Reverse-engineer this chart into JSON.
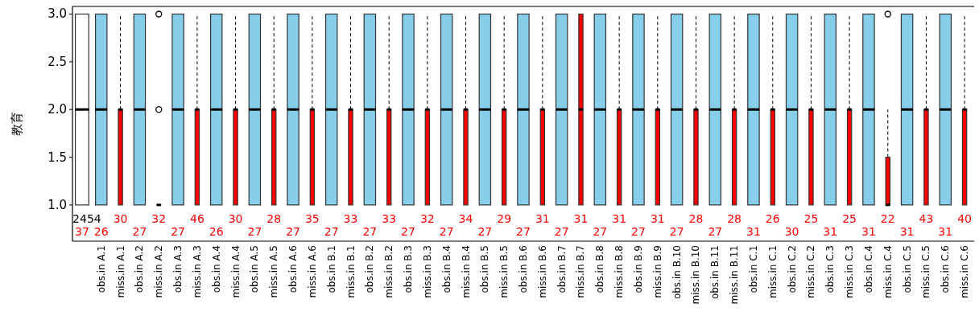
{
  "chart_data": {
    "type": "box",
    "ylabel": "教育",
    "categories": [
      null,
      "obs.in A.1",
      "miss.in A.1",
      "obs.in A.2",
      "miss.in A.2",
      "obs.in A.3",
      "miss.in A.3",
      "obs.in A.4",
      "miss.in A.4",
      "obs.in A.5",
      "miss.in A.5",
      "obs.in A.6",
      "miss.in A.6",
      "obs.in B.1",
      "miss.in B.1",
      "obs.in B.2",
      "miss.in B.2",
      "obs.in B.3",
      "miss.in B.3",
      "obs.in B.4",
      "miss.in B.4",
      "obs.in B.5",
      "miss.in B.5",
      "obs.in B.6",
      "miss.in B.6",
      "obs.in B.7",
      "miss.in B.7",
      "obs.in B.8",
      "miss.in B.8",
      "obs.in B.9",
      "miss.in B.9",
      "obs.in B.10",
      "miss.in B.10",
      "obs.in B.11",
      "miss.in B.11",
      "obs.in C.1",
      "miss.in C.1",
      "obs.in C.2",
      "miss.in C.2",
      "obs.in C.3",
      "miss.in C.3",
      "obs.in C.4",
      "miss.in C.4",
      "obs.in C.5",
      "miss.in C.5",
      "obs.in C.6",
      "miss.in C.6"
    ],
    "ylim": [
      0.62,
      3.08
    ],
    "yticks": [
      {
        "value": 1,
        "label": "1.0"
      },
      {
        "value": 1.5,
        "label": "1.5"
      },
      {
        "value": 2,
        "label": "2.0"
      },
      {
        "value": 2.5,
        "label": "2.5"
      },
      {
        "value": 3,
        "label": "3.0"
      }
    ],
    "series": [
      {
        "color": "#ffffff",
        "boxes": [
          {
            "low": 1,
            "q1": 1,
            "median": 2,
            "q3": 3,
            "high": 3
          },
          null,
          null,
          null,
          null,
          null,
          null,
          null,
          null,
          null,
          null,
          null,
          null,
          null,
          null,
          null,
          null,
          null,
          null,
          null,
          null,
          null,
          null,
          null,
          null,
          null,
          null,
          null,
          null,
          null,
          null,
          null,
          null,
          null,
          null,
          null,
          null,
          null,
          null,
          null,
          null,
          null,
          null,
          null,
          null,
          null,
          null
        ]
      },
      {
        "color": "#87ceeb",
        "boxes": [
          null,
          {
            "low": 1,
            "q1": 1,
            "median": 2,
            "q3": 3,
            "high": 3
          },
          null,
          {
            "low": 1,
            "q1": 1,
            "median": 2,
            "q3": 3,
            "high": 3
          },
          null,
          {
            "low": 1,
            "q1": 1,
            "median": 2,
            "q3": 3,
            "high": 3
          },
          null,
          {
            "low": 1,
            "q1": 1,
            "median": 2,
            "q3": 3,
            "high": 3
          },
          null,
          {
            "low": 1,
            "q1": 1,
            "median": 2,
            "q3": 3,
            "high": 3
          },
          null,
          {
            "low": 1,
            "q1": 1,
            "median": 2,
            "q3": 3,
            "high": 3
          },
          null,
          {
            "low": 1,
            "q1": 1,
            "median": 2,
            "q3": 3,
            "high": 3
          },
          null,
          {
            "low": 1,
            "q1": 1,
            "median": 2,
            "q3": 3,
            "high": 3
          },
          null,
          {
            "low": 1,
            "q1": 1,
            "median": 2,
            "q3": 3,
            "high": 3
          },
          null,
          {
            "low": 1,
            "q1": 1,
            "median": 2,
            "q3": 3,
            "high": 3
          },
          null,
          {
            "low": 1,
            "q1": 1,
            "median": 2,
            "q3": 3,
            "high": 3
          },
          null,
          {
            "low": 1,
            "q1": 1,
            "median": 2,
            "q3": 3,
            "high": 3
          },
          null,
          {
            "low": 1,
            "q1": 1,
            "median": 2,
            "q3": 3,
            "high": 3
          },
          null,
          {
            "low": 1,
            "q1": 1,
            "median": 2,
            "q3": 3,
            "high": 3
          },
          null,
          {
            "low": 1,
            "q1": 1,
            "median": 2,
            "q3": 3,
            "high": 3
          },
          null,
          {
            "low": 1,
            "q1": 1,
            "median": 2,
            "q3": 3,
            "high": 3
          },
          null,
          {
            "low": 1,
            "q1": 1,
            "median": 2,
            "q3": 3,
            "high": 3
          },
          null,
          {
            "low": 1,
            "q1": 1,
            "median": 2,
            "q3": 3,
            "high": 3
          },
          null,
          {
            "low": 1,
            "q1": 1,
            "median": 2,
            "q3": 3,
            "high": 3
          },
          null,
          {
            "low": 1,
            "q1": 1,
            "median": 2,
            "q3": 3,
            "high": 3
          },
          null,
          {
            "low": 1,
            "q1": 1,
            "median": 2,
            "q3": 3,
            "high": 3
          },
          null,
          {
            "low": 1,
            "q1": 1,
            "median": 2,
            "q3": 3,
            "high": 3
          },
          null,
          {
            "low": 1,
            "q1": 1,
            "median": 2,
            "q3": 3,
            "high": 3
          },
          null
        ]
      },
      {
        "color": "#ff0000",
        "boxes": [
          null,
          null,
          {
            "low": 1,
            "q1": 1,
            "median": 2,
            "q3": 2,
            "high": 3
          },
          null,
          {
            "low": 1,
            "q1": 1,
            "median": 1,
            "q3": 1,
            "high": 1,
            "outliers": [
              2,
              3
            ]
          },
          null,
          {
            "low": 1,
            "q1": 1,
            "median": 2,
            "q3": 2,
            "high": 3
          },
          null,
          {
            "low": 1,
            "q1": 1,
            "median": 2,
            "q3": 2,
            "high": 3
          },
          null,
          {
            "low": 1,
            "q1": 1,
            "median": 2,
            "q3": 2,
            "high": 3
          },
          null,
          {
            "low": 1,
            "q1": 1,
            "median": 2,
            "q3": 2,
            "high": 3
          },
          null,
          {
            "low": 1,
            "q1": 1,
            "median": 2,
            "q3": 2,
            "high": 3
          },
          null,
          {
            "low": 1,
            "q1": 1,
            "median": 2,
            "q3": 2,
            "high": 3
          },
          null,
          {
            "low": 1,
            "q1": 1,
            "median": 2,
            "q3": 2,
            "high": 3
          },
          null,
          {
            "low": 1,
            "q1": 1,
            "median": 2,
            "q3": 2,
            "high": 3
          },
          null,
          {
            "low": 1,
            "q1": 1,
            "median": 2,
            "q3": 2,
            "high": 3
          },
          null,
          {
            "low": 1,
            "q1": 1,
            "median": 2,
            "q3": 2,
            "high": 3
          },
          null,
          {
            "low": 1,
            "q1": 1,
            "median": 2,
            "q3": 3,
            "high": 3
          },
          null,
          {
            "low": 1,
            "q1": 1,
            "median": 2,
            "q3": 2,
            "high": 3
          },
          null,
          {
            "low": 1,
            "q1": 1,
            "median": 2,
            "q3": 2,
            "high": 3
          },
          null,
          {
            "low": 1,
            "q1": 1,
            "median": 2,
            "q3": 2,
            "high": 3
          },
          null,
          {
            "low": 1,
            "q1": 1,
            "median": 2,
            "q3": 2,
            "high": 3
          },
          null,
          {
            "low": 1,
            "q1": 1,
            "median": 2,
            "q3": 2,
            "high": 3
          },
          null,
          {
            "low": 1,
            "q1": 1,
            "median": 2,
            "q3": 2,
            "high": 3
          },
          null,
          {
            "low": 1,
            "q1": 1,
            "median": 2,
            "q3": 2,
            "high": 3
          },
          null,
          {
            "low": 1,
            "q1": 1,
            "median": 1,
            "q3": 1.5,
            "high": 2,
            "outliers": [
              3
            ]
          },
          null,
          {
            "low": 1,
            "q1": 1,
            "median": 2,
            "q3": 2,
            "high": 3
          },
          null,
          {
            "low": 1,
            "q1": 1,
            "median": 2,
            "q3": 2,
            "high": 3
          }
        ]
      }
    ],
    "annotations": [
      "2454",
      "37",
      "30",
      "26",
      "32",
      "27",
      "46",
      "27",
      "30",
      "26",
      "28",
      "27",
      "35",
      "27",
      "33",
      "27",
      "33",
      "27",
      "32",
      "27",
      "34",
      "27",
      "29",
      "27",
      "31",
      "27",
      "31",
      "27",
      "31",
      "27",
      "31",
      "27",
      "28",
      "27",
      "28",
      "27",
      "26",
      "31",
      "25",
      "30",
      "25",
      "31",
      "22",
      "31",
      "43",
      "31",
      "40",
      "31"
    ]
  }
}
